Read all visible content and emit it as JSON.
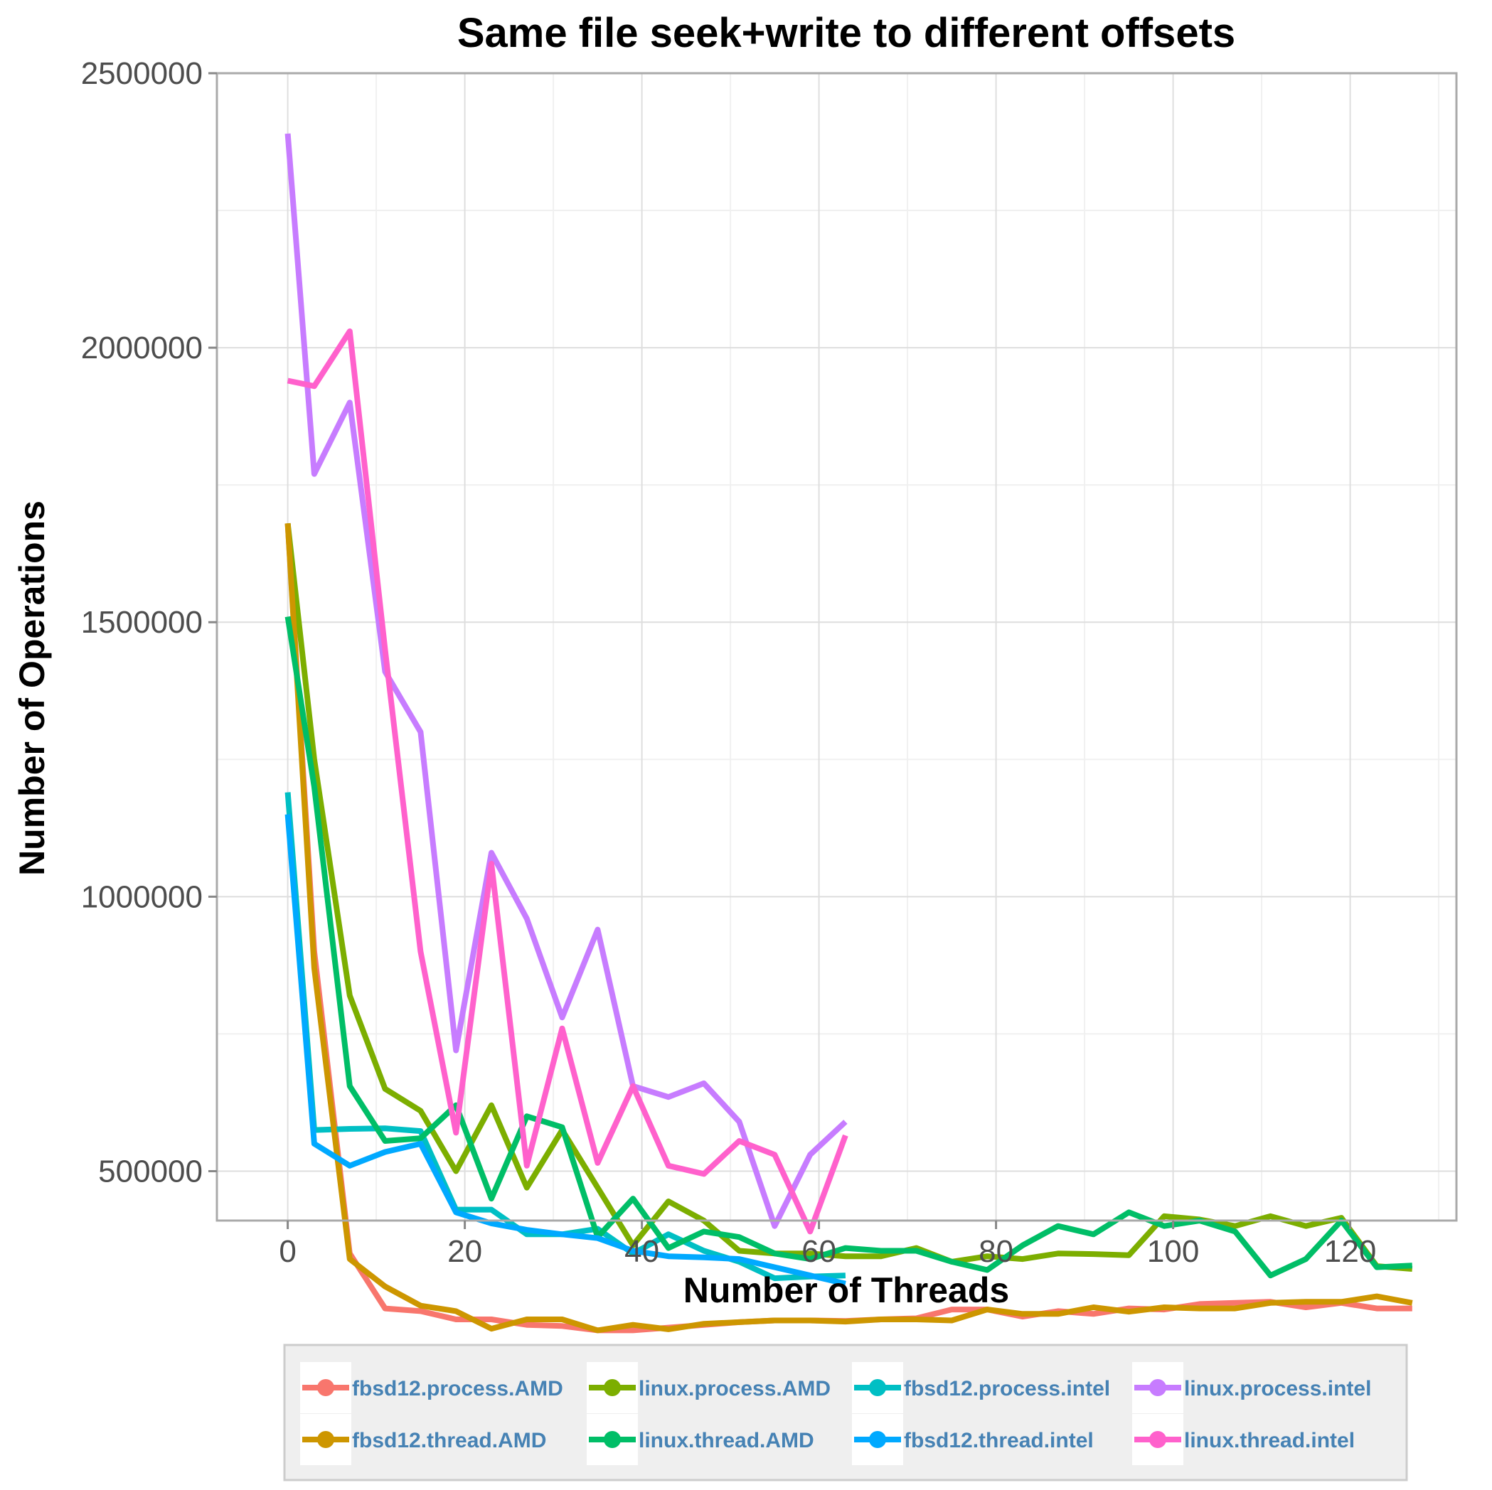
{
  "chart_data": {
    "type": "line",
    "title": "Same file seek+write to different offsets",
    "xlabel": "Number of Threads",
    "ylabel": "Number of Operations",
    "xlim": [
      -8,
      132
    ],
    "ylim": [
      410000,
      2500000
    ],
    "x_ticks": [
      0,
      20,
      40,
      60,
      80,
      100,
      120
    ],
    "y_ticks": [
      500000,
      1000000,
      1500000,
      2000000,
      2500000
    ],
    "grid": true,
    "legend_position": "bottom",
    "legend_text_color": "#4682b4",
    "series": [
      {
        "name": "fbsd12.process.AMD",
        "color": "#F8766D",
        "x": [
          0,
          3,
          7,
          11,
          15,
          19,
          23,
          27,
          31,
          35,
          39,
          43,
          47,
          51,
          55,
          59,
          63,
          67,
          71,
          75,
          79,
          83,
          87,
          91,
          95,
          99,
          103,
          107,
          111,
          115,
          119,
          123,
          127
        ],
        "y": [
          1680000,
          900000,
          350000,
          250000,
          245000,
          230000,
          230000,
          220000,
          218000,
          210000,
          210000,
          215000,
          220000,
          225000,
          228000,
          228000,
          227000,
          230000,
          232000,
          248000,
          248000,
          235000,
          245000,
          240000,
          250000,
          248000,
          258000,
          260000,
          262000,
          252000,
          260000,
          250000,
          250000
        ]
      },
      {
        "name": "linux.process.AMD",
        "color": "#7CAE00",
        "x": [
          0,
          3,
          7,
          11,
          15,
          19,
          23,
          27,
          31,
          35,
          39,
          43,
          47,
          51,
          55,
          59,
          63,
          67,
          71,
          75,
          79,
          83,
          87,
          91,
          95,
          99,
          103,
          107,
          111,
          115,
          119,
          123,
          127
        ],
        "y": [
          1680000,
          1250000,
          820000,
          650000,
          610000,
          500000,
          620000,
          470000,
          575000,
          470000,
          365000,
          445000,
          410000,
          355000,
          350000,
          350000,
          345000,
          345000,
          360000,
          335000,
          345000,
          340000,
          350000,
          349000,
          347000,
          418000,
          412000,
          400000,
          418000,
          400000,
          415000,
          327000,
          322000
        ]
      },
      {
        "name": "fbsd12.process.intel",
        "color": "#00BFC4",
        "x": [
          0,
          3,
          7,
          11,
          15,
          19,
          23,
          27,
          31,
          35,
          39,
          43,
          47,
          51,
          55,
          59,
          63
        ],
        "y": [
          1190000,
          575000,
          577000,
          578000,
          573000,
          430000,
          430000,
          385000,
          385000,
          395000,
          350000,
          385000,
          355000,
          335000,
          305000,
          308000,
          310000
        ]
      },
      {
        "name": "linux.process.intel",
        "color": "#C77CFF",
        "x": [
          0,
          3,
          7,
          11,
          15,
          19,
          23,
          27,
          31,
          35,
          39,
          43,
          47,
          51,
          55,
          59,
          63
        ],
        "y": [
          2390000,
          1770000,
          1900000,
          1410000,
          1300000,
          720000,
          1080000,
          960000,
          780000,
          940000,
          655000,
          635000,
          660000,
          590000,
          400000,
          530000,
          590000
        ]
      },
      {
        "name": "fbsd12.thread.AMD",
        "color": "#CD9600",
        "x": [
          0,
          3,
          7,
          11,
          15,
          19,
          23,
          27,
          31,
          35,
          39,
          43,
          47,
          51,
          55,
          59,
          63,
          67,
          71,
          75,
          79,
          83,
          87,
          91,
          95,
          99,
          103,
          107,
          111,
          115,
          119,
          123,
          127
        ],
        "y": [
          1680000,
          870000,
          340000,
          290000,
          255000,
          245000,
          213000,
          230000,
          230000,
          210000,
          220000,
          212000,
          222000,
          225000,
          228000,
          228000,
          226000,
          230000,
          230000,
          228000,
          248000,
          240000,
          240000,
          252000,
          244000,
          252000,
          250000,
          250000,
          260000,
          262000,
          262000,
          272000,
          260000
        ]
      },
      {
        "name": "linux.thread.AMD",
        "color": "#00BE67",
        "x": [
          0,
          3,
          7,
          11,
          15,
          19,
          23,
          27,
          31,
          35,
          39,
          43,
          47,
          51,
          55,
          59,
          63,
          67,
          71,
          75,
          79,
          83,
          87,
          91,
          95,
          99,
          103,
          107,
          111,
          115,
          119,
          123,
          127
        ],
        "y": [
          1510000,
          1200000,
          655000,
          555000,
          560000,
          620000,
          450000,
          600000,
          580000,
          380000,
          450000,
          360000,
          390000,
          380000,
          350000,
          340000,
          360000,
          355000,
          355000,
          335000,
          320000,
          365000,
          400000,
          385000,
          425000,
          400000,
          410000,
          390000,
          310000,
          340000,
          410000,
          325000,
          328000
        ]
      },
      {
        "name": "fbsd12.thread.intel",
        "color": "#00A9FF",
        "x": [
          0,
          3,
          7,
          11,
          15,
          19,
          23,
          27,
          31,
          35,
          39,
          43,
          47,
          51,
          55,
          59,
          63
        ],
        "y": [
          1150000,
          550000,
          510000,
          535000,
          550000,
          425000,
          405000,
          393000,
          385000,
          378000,
          355000,
          345000,
          343000,
          340000,
          325000,
          310000,
          295000
        ]
      },
      {
        "name": "linux.thread.intel",
        "color": "#FF61CC",
        "x": [
          0,
          3,
          7,
          11,
          15,
          19,
          23,
          27,
          31,
          35,
          39,
          43,
          47,
          51,
          55,
          59,
          63
        ],
        "y": [
          1940000,
          1930000,
          2030000,
          1450000,
          900000,
          570000,
          1060000,
          510000,
          760000,
          515000,
          655000,
          510000,
          495000,
          555000,
          530000,
          390000,
          565000
        ]
      }
    ]
  }
}
